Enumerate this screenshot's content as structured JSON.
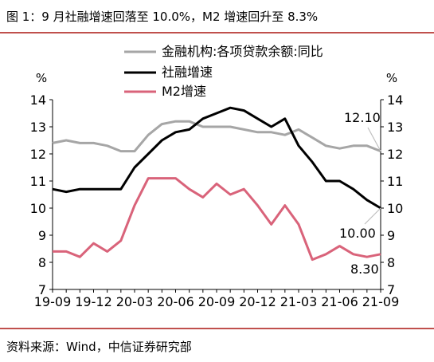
{
  "title": "图 1：9 月社融增速回落至 10.0%，M2 增速回升至 8.3%",
  "source": "资料来源：Wind，中信证券研究部",
  "chart_data": {
    "type": "line",
    "x": [
      "2019-09",
      "2019-10",
      "2019-11",
      "2019-12",
      "2020-01",
      "2020-02",
      "2020-03",
      "2020-04",
      "2020-05",
      "2020-06",
      "2020-07",
      "2020-08",
      "2020-09",
      "2020-10",
      "2020-11",
      "2020-12",
      "2021-01",
      "2021-02",
      "2021-03",
      "2021-04",
      "2021-05",
      "2021-06",
      "2021-07",
      "2021-08",
      "2021-09"
    ],
    "xticks": [
      "19-09",
      "19-12",
      "20-03",
      "20-06",
      "20-09",
      "20-12",
      "21-03",
      "21-06",
      "21-09"
    ],
    "ylim": [
      7,
      14
    ],
    "yticks": [
      7,
      8,
      9,
      10,
      11,
      12,
      13,
      14
    ],
    "ylabel_left": "%",
    "ylabel_right": "%",
    "legend_position": "top",
    "series": [
      {
        "name": "金融机构:各项贷款余额:同比",
        "color": "#a6a6a6",
        "values": [
          12.4,
          12.5,
          12.4,
          12.4,
          12.3,
          12.1,
          12.1,
          12.7,
          13.1,
          13.2,
          13.2,
          13.0,
          13.0,
          13.0,
          12.9,
          12.8,
          12.8,
          12.7,
          12.9,
          12.6,
          12.3,
          12.2,
          12.3,
          12.3,
          12.1
        ]
      },
      {
        "name": "社融增速",
        "color": "#000000",
        "values": [
          10.7,
          10.6,
          10.7,
          10.7,
          10.7,
          10.7,
          11.5,
          12.0,
          12.5,
          12.8,
          12.9,
          13.3,
          13.5,
          13.7,
          13.6,
          13.3,
          13.0,
          13.3,
          12.3,
          11.7,
          11.0,
          11.0,
          10.7,
          10.3,
          10.0
        ]
      },
      {
        "name": "M2增速",
        "color": "#d9637a",
        "values": [
          8.4,
          8.4,
          8.2,
          8.7,
          8.4,
          8.8,
          10.1,
          11.1,
          11.1,
          11.1,
          10.7,
          10.4,
          10.9,
          10.5,
          10.7,
          10.1,
          9.4,
          10.1,
          9.4,
          8.1,
          8.3,
          8.6,
          8.3,
          8.2,
          8.3
        ]
      }
    ],
    "annotations": [
      {
        "text": "12.10",
        "series": 0,
        "x": "2021-09"
      },
      {
        "text": "10.00",
        "series": 1,
        "x": "2021-09"
      },
      {
        "text": "8.30",
        "series": 2,
        "x": "2021-09"
      }
    ]
  }
}
